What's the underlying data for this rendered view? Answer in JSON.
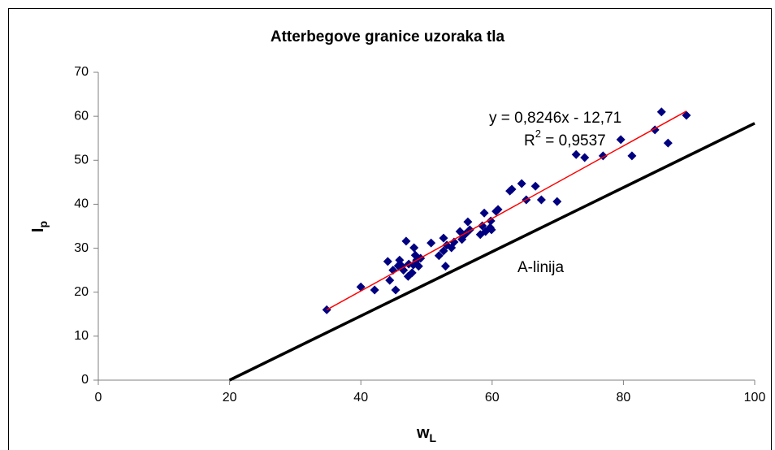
{
  "chart_data": {
    "type": "scatter",
    "title": "Atterbegove granice uzoraka tla",
    "xlabel": {
      "text": "w",
      "sub": "L"
    },
    "ylabel": {
      "text": "I",
      "sub": "p"
    },
    "xlim": [
      0,
      100
    ],
    "xticks": [
      0,
      20,
      40,
      60,
      80,
      100
    ],
    "ylim": [
      0,
      70
    ],
    "yticks": [
      0,
      10,
      20,
      30,
      40,
      50,
      60,
      70
    ],
    "series": [
      {
        "color": "#000080",
        "x": [
          34.8,
          40,
          42.1,
          44.1,
          44.4,
          44.9,
          45.3,
          45.7,
          45.9,
          46.2,
          46.9,
          46.5,
          47.3,
          47.2,
          47.8,
          48,
          48.1,
          48.3,
          48.5,
          48.8,
          49.1,
          50.7,
          51.9,
          52.6,
          52.6,
          52.9,
          53.1,
          53.8,
          54.2,
          55.1,
          55.4,
          55.9,
          56.3,
          56.6,
          58.2,
          58.5,
          58.8,
          59,
          59.7,
          59.8,
          59.9,
          60.6,
          60.9,
          62.7,
          63,
          64.5,
          65.2,
          66.6,
          67.5,
          69.9,
          72.8,
          74.1,
          76.9,
          79.6,
          81.3,
          84.8,
          85.8,
          86.8,
          89.6
        ],
        "values": [
          16,
          21.2,
          20.5,
          27,
          22.7,
          25,
          20.5,
          26,
          27.3,
          26,
          31.6,
          25,
          26.4,
          23.6,
          24.4,
          26.2,
          30.1,
          28.4,
          27.3,
          25.9,
          27.7,
          31.2,
          28.3,
          32.3,
          29.4,
          25.9,
          30.7,
          30.1,
          31.4,
          33.8,
          32,
          33.2,
          36,
          34.2,
          33.1,
          35.1,
          38,
          33.8,
          34.7,
          36.2,
          34.2,
          38.4,
          38.8,
          43,
          43.4,
          44.7,
          41,
          44.1,
          41,
          40.6,
          51.3,
          50.6,
          51,
          54.7,
          51,
          56.9,
          61,
          53.9,
          60.2
        ]
      }
    ],
    "trendline": {
      "color": "#ff0000",
      "slope": 0.8246,
      "intercept": -12.71,
      "x_range": [
        34.8,
        89.6
      ],
      "label": "y = 0,8246x - 12,71",
      "r2_label": {
        "text": "R",
        "sup": "2",
        "rest": " = 0,9537"
      }
    },
    "a_line": {
      "label": "A-linija",
      "color": "#000000",
      "x": [
        20,
        100
      ],
      "y": [
        0,
        58.4
      ]
    }
  }
}
